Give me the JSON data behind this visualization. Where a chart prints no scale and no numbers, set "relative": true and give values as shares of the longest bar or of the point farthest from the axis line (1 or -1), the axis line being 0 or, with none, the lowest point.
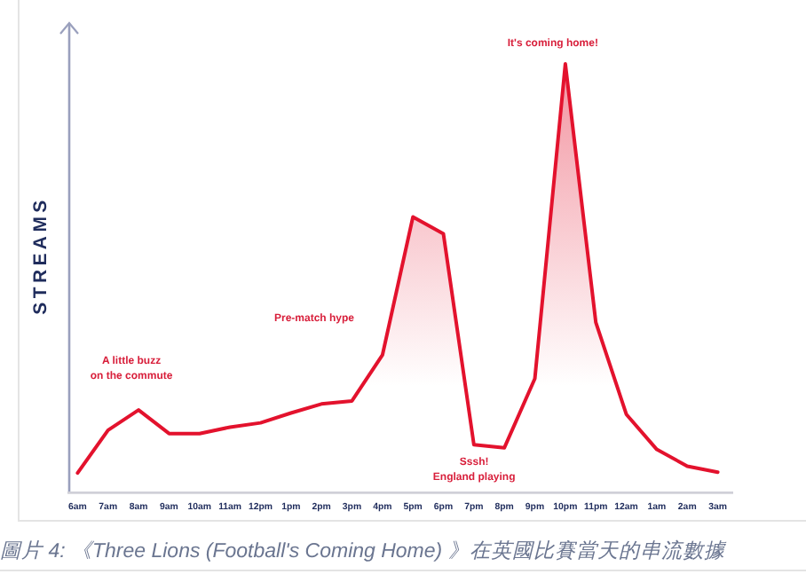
{
  "chart_data": {
    "type": "area",
    "ylabel": "STREAMS",
    "relative": true,
    "categories": [
      "6am",
      "7am",
      "8am",
      "9am",
      "10am",
      "11am",
      "12pm",
      "1pm",
      "2pm",
      "3pm",
      "4pm",
      "5pm",
      "6pm",
      "7pm",
      "8pm",
      "9pm",
      "10pm",
      "11pm",
      "12am",
      "1am",
      "2am",
      "3am"
    ],
    "series": [
      {
        "color": "#e3122d",
        "values": [
          0.046,
          0.146,
          0.193,
          0.138,
          0.138,
          0.153,
          0.163,
          0.186,
          0.207,
          0.214,
          0.321,
          0.643,
          0.604,
          0.112,
          0.105,
          0.266,
          1,
          0.397,
          0.183,
          0.101,
          0.062,
          0.048
        ]
      }
    ],
    "annotations": [
      {
        "text": "A little buzz on the commute",
        "x": "8am",
        "y": 0.193
      },
      "Pre-match hype",
      {
        "text": "Sssh! England playing",
        "x": "8pm",
        "y": 0.105
      },
      {
        "text": "It's coming home!",
        "x": "10pm",
        "y": 1
      },
      "圖片 4: 《Three Lions (Football's Coming Home) 》在英國比賽當天的串流數據"
    ]
  }
}
